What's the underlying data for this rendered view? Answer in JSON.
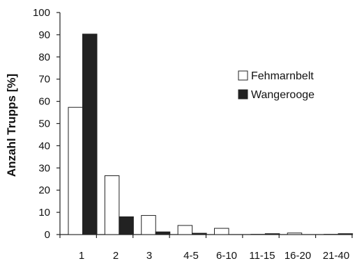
{
  "chart_data": {
    "type": "bar",
    "categories": [
      "1",
      "2",
      "3",
      "4-5",
      "6-10",
      "11-15",
      "16-20",
      "21-40"
    ],
    "series": [
      {
        "name": "Fehmarnbelt",
        "color": "#ffffff",
        "values": [
          57.3,
          26.5,
          8.6,
          4.1,
          2.8,
          0.1,
          0.7,
          0.1
        ]
      },
      {
        "name": "Wangerooge",
        "color": "#222222",
        "values": [
          90.3,
          8.0,
          1.2,
          0.6,
          0.0,
          0.4,
          0.0,
          0.4
        ]
      }
    ],
    "title": "",
    "xlabel": "",
    "ylabel": "Anzahl Trupps [%]",
    "ylim": [
      0,
      100
    ],
    "yticks": [
      0,
      10,
      20,
      30,
      40,
      50,
      60,
      70,
      80,
      90,
      100
    ],
    "grid": false,
    "legend_position": "right"
  }
}
